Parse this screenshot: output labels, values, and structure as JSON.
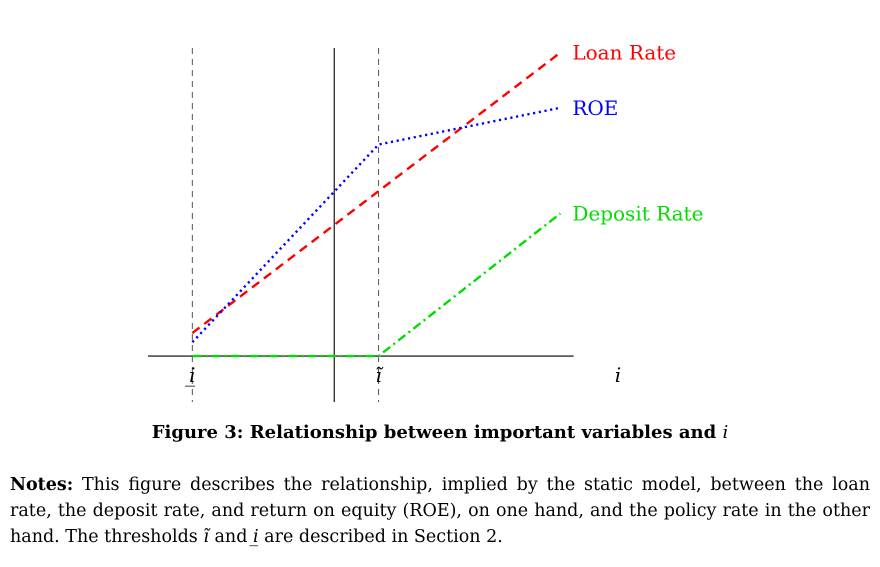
{
  "figure": {
    "caption_prefix": "Figure 3: Relationship between important variables and ",
    "caption_variable": "i"
  },
  "notes": {
    "heading": "Notes:",
    "text_part1": " This figure describes the relationship, implied by the static model, between the loan rate, the deposit rate, and return on equity (ROE), on one hand, and the policy rate in the other hand. The thresholds ",
    "threshold_tilde": "ĩ",
    "text_part2": " and ",
    "threshold_under": "i̲",
    "text_part3": " are described in Section 2."
  },
  "chart_data": {
    "type": "line",
    "title": "",
    "xlabel": "i",
    "ylabel": "",
    "x_ticks": [
      {
        "label": "i̲",
        "x": 0
      },
      {
        "label": "ĩ",
        "x": 4.2
      }
    ],
    "x_range": [
      -1,
      9.6
    ],
    "y_range": [
      -1,
      6.7
    ],
    "grid": false,
    "legend": "labels at line ends",
    "reference_lines": [
      {
        "axis": "x",
        "value": 0,
        "style": "dashed",
        "color": "#555555"
      },
      {
        "axis": "x",
        "value": 4.2,
        "style": "dashed",
        "color": "#555555"
      },
      {
        "axis": "x",
        "value": 3.2,
        "style": "solid",
        "color": "#000000"
      }
    ],
    "series": [
      {
        "name": "Loan Rate",
        "color": "#ff0000",
        "dash": "dashed",
        "x": [
          0,
          8.3
        ],
        "y": [
          0.5,
          6.6
        ]
      },
      {
        "name": "ROE",
        "color": "#0000ff",
        "dash": "dotted",
        "x": [
          0,
          4.2,
          8.3
        ],
        "y": [
          0.3,
          4.6,
          5.4
        ]
      },
      {
        "name": "Deposit Rate",
        "color": "#00dd00",
        "dash": "dashdot",
        "x": [
          0,
          4.2,
          8.3
        ],
        "y": [
          0,
          0,
          3.1
        ]
      }
    ]
  }
}
